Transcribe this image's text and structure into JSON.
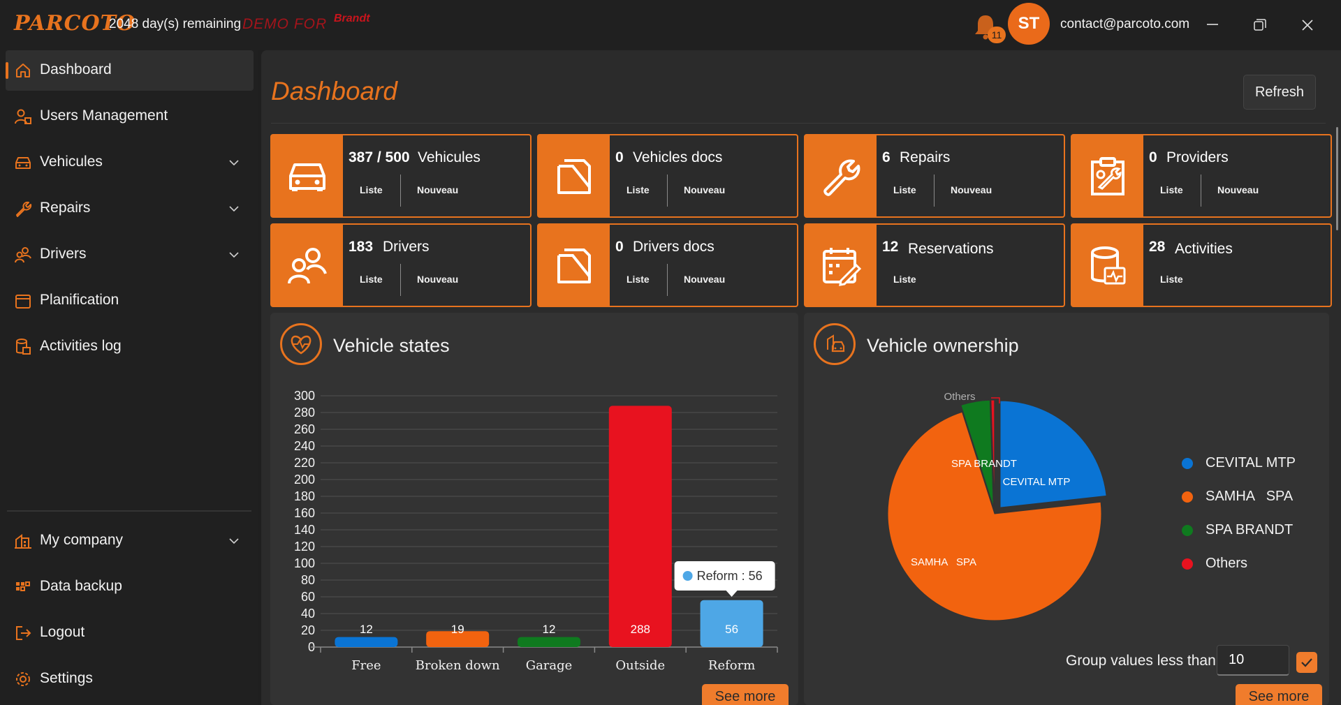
{
  "titlebar": {
    "logo": "PARCOTO",
    "days_remaining": "2048 day(s) remaining",
    "demo_label": "DEMO FOR",
    "brand_logo": "Brandt",
    "notifications_count": "11",
    "avatar_initials": "ST",
    "email": "contact@parcoto.com",
    "icons": [
      "bell-icon",
      "minimize-icon",
      "maximize-icon",
      "close-icon"
    ]
  },
  "sidebar": {
    "items": [
      {
        "label": "Dashboard",
        "icon": "home-icon",
        "active": true,
        "expandable": false
      },
      {
        "label": "Users Management",
        "icon": "users-icon",
        "active": false,
        "expandable": false
      },
      {
        "label": "Vehicules",
        "icon": "car-icon",
        "active": false,
        "expandable": true
      },
      {
        "label": "Repairs",
        "icon": "wrench-icon",
        "active": false,
        "expandable": true
      },
      {
        "label": "Drivers",
        "icon": "drivers-icon",
        "active": false,
        "expandable": true
      },
      {
        "label": "Planification",
        "icon": "calendar-icon",
        "active": false,
        "expandable": false
      },
      {
        "label": "Activities log",
        "icon": "log-icon",
        "active": false,
        "expandable": false
      }
    ],
    "bottom_items": [
      {
        "label": "My company",
        "icon": "company-icon",
        "expandable": true
      },
      {
        "label": "Data backup",
        "icon": "backup-icon",
        "expandable": false
      },
      {
        "label": "Logout",
        "icon": "logout-icon",
        "expandable": false
      },
      {
        "label": "Settings",
        "icon": "settings-icon",
        "expandable": false
      }
    ]
  },
  "main": {
    "title": "Dashboard",
    "refresh_label": "Refresh",
    "accent_color": "#e8731e",
    "cards": [
      {
        "count": "387 / 500",
        "label": "Vehicules",
        "icon": "car-icon",
        "links": [
          "Liste",
          "Nouveau"
        ]
      },
      {
        "count": "0",
        "label": "Vehicles docs",
        "icon": "document-icon",
        "links": [
          "Liste",
          "Nouveau"
        ]
      },
      {
        "count": "6",
        "label": "Repairs",
        "icon": "wrench-icon",
        "links": [
          "Liste",
          "Nouveau"
        ]
      },
      {
        "count": "0",
        "label": "Providers",
        "icon": "clipboard-tools-icon",
        "links": [
          "Liste",
          "Nouveau"
        ]
      },
      {
        "count": "183",
        "label": "Drivers",
        "icon": "drivers-icon",
        "links": [
          "Liste",
          "Nouveau"
        ]
      },
      {
        "count": "0",
        "label": "Drivers docs",
        "icon": "document-icon",
        "links": [
          "Liste",
          "Nouveau"
        ]
      },
      {
        "count": "12",
        "label": "Reservations",
        "icon": "calendar-edit-icon",
        "links": [
          "Liste"
        ]
      },
      {
        "count": "28",
        "label": "Activities",
        "icon": "database-activity-icon",
        "links": [
          "Liste"
        ]
      }
    ],
    "vehicle_states": {
      "title": "Vehicle states",
      "icon": "heart-pulse-icon",
      "tooltip": "Reform : 56",
      "see_more": "See more"
    },
    "vehicle_ownership": {
      "title": "Vehicle ownership",
      "icon": "car-building-icon",
      "group_label": "Group values less than",
      "group_value": "10",
      "see_more": "See more"
    }
  },
  "chart_data": [
    {
      "type": "bar",
      "title": "Vehicle states",
      "categories": [
        "Free",
        "Broken down",
        "Garage",
        "Outside",
        "Reform"
      ],
      "values": [
        12,
        19,
        12,
        288,
        56
      ],
      "colors": [
        "#0a74d4",
        "#f2630f",
        "#0f7a1f",
        "#e8121f",
        "#4ea7e6"
      ],
      "ylim": [
        0,
        300
      ],
      "yticks": [
        0,
        20,
        40,
        60,
        80,
        100,
        120,
        140,
        160,
        180,
        200,
        220,
        240,
        260,
        280,
        300
      ],
      "grid": true
    },
    {
      "type": "pie",
      "title": "Vehicle ownership",
      "labels": [
        "CEVITAL MTP",
        "SAMHA   SPA",
        "SPA BRANDT",
        "Others"
      ],
      "values": [
        90,
        278,
        17,
        2
      ],
      "colors": [
        "#0a74d4",
        "#f2630f",
        "#0f7a1f",
        "#e8121f"
      ],
      "legend": "right"
    }
  ]
}
